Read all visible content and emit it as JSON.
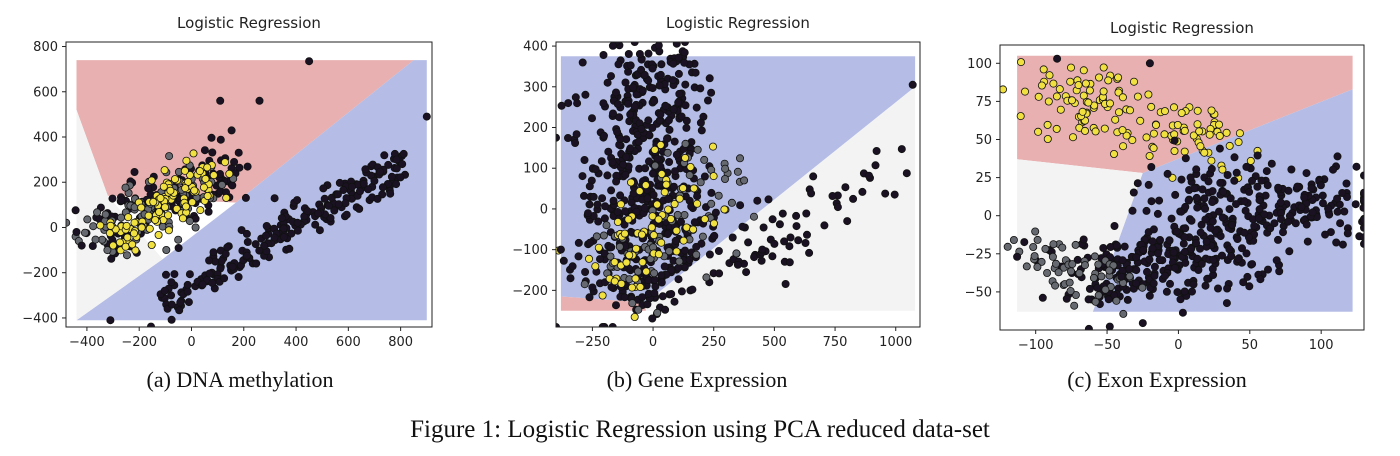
{
  "figure_caption": "Figure 1: Logistic Regression using PCA reduced data-set",
  "colors": {
    "region_red": "#e8b0b0",
    "region_blue": "#b5bde6",
    "region_white": "#f3f3f3",
    "point_dark": "#1a1222",
    "point_gray": "#666a70",
    "point_yellow": "#f0e040"
  },
  "chart_data": [
    {
      "type": "scatter",
      "title": "Logistic Regression",
      "subcaption": "(a) DNA methylation",
      "xlim": [
        -480,
        920
      ],
      "ylim": [
        -440,
        820
      ],
      "xticks": [
        -400,
        -200,
        0,
        200,
        400,
        600,
        800
      ],
      "yticks": [
        -400,
        -200,
        0,
        200,
        400,
        600,
        800
      ],
      "regions": [
        {
          "class": "red",
          "polygon": [
            [
              -440,
              740
            ],
            [
              850,
              740
            ],
            [
              170,
              110
            ],
            [
              -320,
              140
            ],
            [
              -440,
              520
            ]
          ]
        },
        {
          "class": "blue",
          "polygon": [
            [
              850,
              740
            ],
            [
              900,
              740
            ],
            [
              900,
              -410
            ],
            [
              -440,
              -410
            ],
            [
              -110,
              -140
            ],
            [
              170,
              110
            ]
          ]
        },
        {
          "class": "white",
          "polygon": [
            [
              -440,
              520
            ],
            [
              -320,
              140
            ],
            [
              -110,
              -140
            ],
            [
              -440,
              -410
            ]
          ]
        }
      ],
      "clusters": [
        {
          "class": "dark",
          "n": 220,
          "from": [
            -120,
            -330
          ],
          "to": [
            820,
            280
          ],
          "spread": [
            30,
            45
          ]
        },
        {
          "class": "dark",
          "n": 140,
          "from": [
            -350,
            0
          ],
          "to": [
            150,
            250
          ],
          "spread": [
            55,
            70
          ]
        },
        {
          "class": "gray",
          "n": 90,
          "from": [
            -380,
            -60
          ],
          "to": [
            50,
            200
          ],
          "spread": [
            60,
            70
          ]
        },
        {
          "class": "yellow",
          "n": 110,
          "from": [
            -290,
            -60
          ],
          "to": [
            40,
            250
          ],
          "spread": [
            55,
            55
          ]
        }
      ],
      "points": [
        [
          450,
          735
        ],
        [
          900,
          490
        ],
        [
          110,
          560
        ],
        [
          260,
          560
        ],
        [
          -310,
          -410
        ],
        [
          -10,
          -330
        ],
        [
          -420,
          -80
        ],
        [
          -440,
          -20
        ]
      ]
    },
    {
      "type": "scatter",
      "title": "Logistic Regression",
      "subcaption": "(b) Gene Expression",
      "xlim": [
        -400,
        1100
      ],
      "ylim": [
        -290,
        410
      ],
      "xticks": [
        -250,
        0,
        250,
        500,
        750,
        1000
      ],
      "yticks": [
        -200,
        -100,
        0,
        100,
        200,
        300,
        400
      ],
      "regions": [
        {
          "class": "blue",
          "polygon": [
            [
              -380,
              375
            ],
            [
              1080,
              375
            ],
            [
              1080,
              300
            ],
            [
              -30,
              -230
            ],
            [
              -380,
              -215
            ]
          ]
        },
        {
          "class": "white",
          "polygon": [
            [
              1080,
              300
            ],
            [
              1080,
              -250
            ],
            [
              -30,
              -250
            ],
            [
              -30,
              -230
            ]
          ]
        },
        {
          "class": "red",
          "polygon": [
            [
              -380,
              -215
            ],
            [
              -30,
              -230
            ],
            [
              -30,
              -250
            ],
            [
              -380,
              -250
            ]
          ]
        }
      ],
      "clusters": [
        {
          "class": "dark",
          "n": 520,
          "from": [
            -60,
            -220
          ],
          "to": [
            -20,
            360
          ],
          "spread": [
            130,
            55
          ]
        },
        {
          "class": "dark",
          "n": 80,
          "from": [
            100,
            -200
          ],
          "to": [
            1000,
            110
          ],
          "spread": [
            140,
            40
          ]
        },
        {
          "class": "gray",
          "n": 80,
          "from": [
            -150,
            -170
          ],
          "to": [
            250,
            80
          ],
          "spread": [
            100,
            60
          ]
        },
        {
          "class": "yellow",
          "n": 70,
          "from": [
            -160,
            -200
          ],
          "to": [
            180,
            100
          ],
          "spread": [
            90,
            60
          ]
        }
      ],
      "points": [
        [
          1070,
          305
        ],
        [
          -400,
          175
        ],
        [
          -380,
          -100
        ],
        [
          660,
          80
        ],
        [
          800,
          -30
        ],
        [
          450,
          -100
        ]
      ]
    },
    {
      "type": "scatter",
      "title": "Logistic Regression",
      "subcaption": "(c) Exon Expression",
      "xlim": [
        -125,
        130
      ],
      "ylim": [
        -75,
        112
      ],
      "xticks": [
        -100,
        -50,
        0,
        50,
        100
      ],
      "yticks": [
        -50,
        -25,
        0,
        25,
        50,
        75,
        100
      ],
      "regions": [
        {
          "class": "red",
          "polygon": [
            [
              -113,
              105
            ],
            [
              122,
              105
            ],
            [
              122,
              83
            ],
            [
              -25,
              28
            ],
            [
              -113,
              37
            ]
          ]
        },
        {
          "class": "blue",
          "polygon": [
            [
              122,
              83
            ],
            [
              122,
              -63
            ],
            [
              -60,
              -63
            ],
            [
              -25,
              28
            ]
          ]
        },
        {
          "class": "white",
          "polygon": [
            [
              -113,
              37
            ],
            [
              -25,
              28
            ],
            [
              -60,
              -63
            ],
            [
              -113,
              -63
            ]
          ]
        }
      ],
      "clusters": [
        {
          "class": "yellow",
          "n": 140,
          "from": [
            -95,
            85
          ],
          "to": [
            40,
            45
          ],
          "spread": [
            14,
            12
          ]
        },
        {
          "class": "dark",
          "n": 260,
          "from": [
            -60,
            -40
          ],
          "to": [
            40,
            -20
          ],
          "spread": [
            22,
            14
          ]
        },
        {
          "class": "dark",
          "n": 220,
          "from": [
            0,
            10
          ],
          "to": [
            120,
            5
          ],
          "spread": [
            20,
            14
          ]
        },
        {
          "class": "gray",
          "n": 60,
          "from": [
            -110,
            -25
          ],
          "to": [
            -30,
            -45
          ],
          "spread": [
            14,
            10
          ]
        }
      ],
      "points": [
        [
          -85,
          103
        ],
        [
          -20,
          100
        ],
        [
          -113,
          -27
        ],
        [
          -40,
          -40
        ],
        [
          -62,
          -48
        ]
      ]
    }
  ]
}
